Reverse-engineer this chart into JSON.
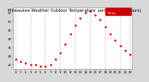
{
  "title": "Milwaukee Weather Outdoor Temperature  per Hour  (24 Hours)",
  "hours": [
    0,
    1,
    2,
    3,
    4,
    5,
    6,
    7,
    8,
    9,
    10,
    11,
    12,
    13,
    14,
    15,
    16,
    17,
    18,
    19,
    20,
    21,
    22,
    23
  ],
  "temps": [
    28,
    27,
    26,
    25,
    25,
    24,
    24,
    25,
    28,
    32,
    37,
    43,
    48,
    52,
    55,
    56,
    54,
    51,
    47,
    43,
    39,
    36,
    33,
    31
  ],
  "dot_color": "#dd0000",
  "bg_color": "#d8d8d8",
  "plot_bg": "#ffffff",
  "grid_color": "#999999",
  "grid_hours": [
    0,
    3,
    6,
    9,
    12,
    15,
    18,
    21,
    23
  ],
  "ylim": [
    22,
    58
  ],
  "xlim": [
    -0.5,
    23.5
  ],
  "ytick_vals": [
    25,
    30,
    35,
    40,
    45,
    50,
    55
  ],
  "ytick_labels": [
    "25",
    "30",
    "35",
    "40",
    "45",
    "50",
    "55"
  ],
  "xtick_vals": [
    0,
    1,
    2,
    3,
    4,
    5,
    6,
    7,
    8,
    9,
    10,
    11,
    12,
    13,
    14,
    15,
    16,
    17,
    18,
    19,
    20,
    21,
    22,
    23
  ],
  "legend_box_color": "#cc0000",
  "legend_label": "Temp",
  "title_fontsize": 3.8,
  "tick_fontsize": 2.8,
  "marker_size": 1.8,
  "legend_fontsize": 3.0
}
